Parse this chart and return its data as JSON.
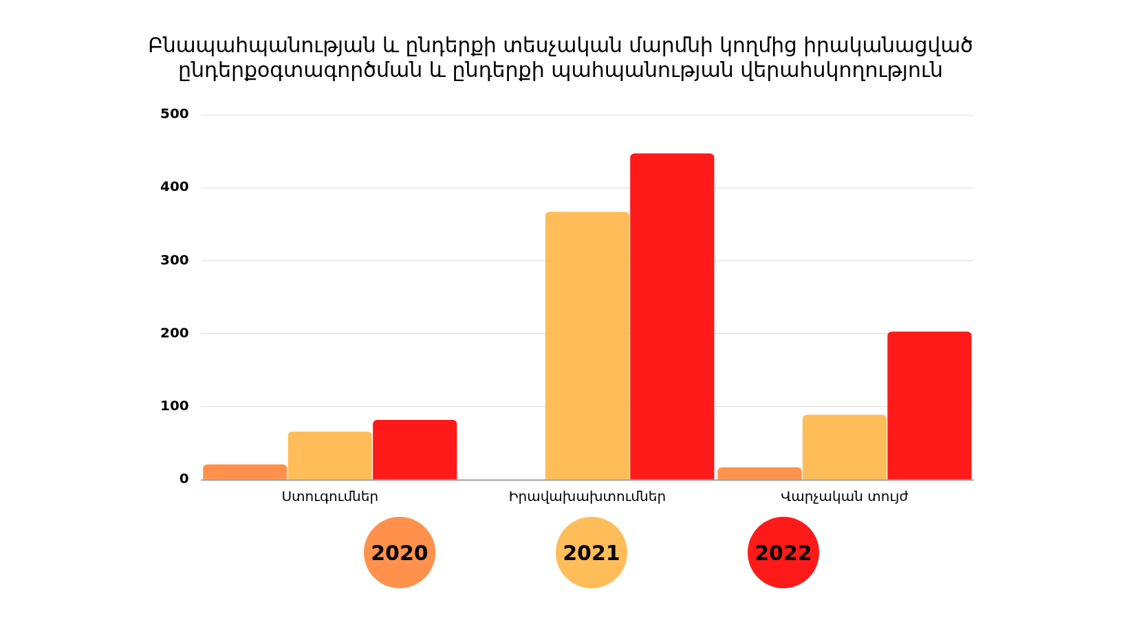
{
  "chart_data": {
    "type": "bar",
    "title": "Բնապահպանության և ընդերքի տեսչական մարմնի կողմից իրականացված ընդերքօգտագործման և ընդերքի պահպանության վերահսկողություն",
    "categories": [
      "Ստուգումներ",
      "Իրավախախտումներ",
      "Վարչական տույժ"
    ],
    "series": [
      {
        "name": "2020",
        "color": "#ff914d",
        "values": [
          21,
          null,
          17
        ]
      },
      {
        "name": "2021",
        "color": "#ffbd59",
        "values": [
          66,
          367,
          89
        ]
      },
      {
        "name": "2022",
        "color": "#ff1a1a",
        "values": [
          82,
          447,
          203
        ]
      }
    ],
    "ylim": [
      0,
      500
    ],
    "yticks": [
      0,
      100,
      200,
      300,
      400,
      500
    ],
    "grid": "y",
    "legend": "bottom"
  }
}
